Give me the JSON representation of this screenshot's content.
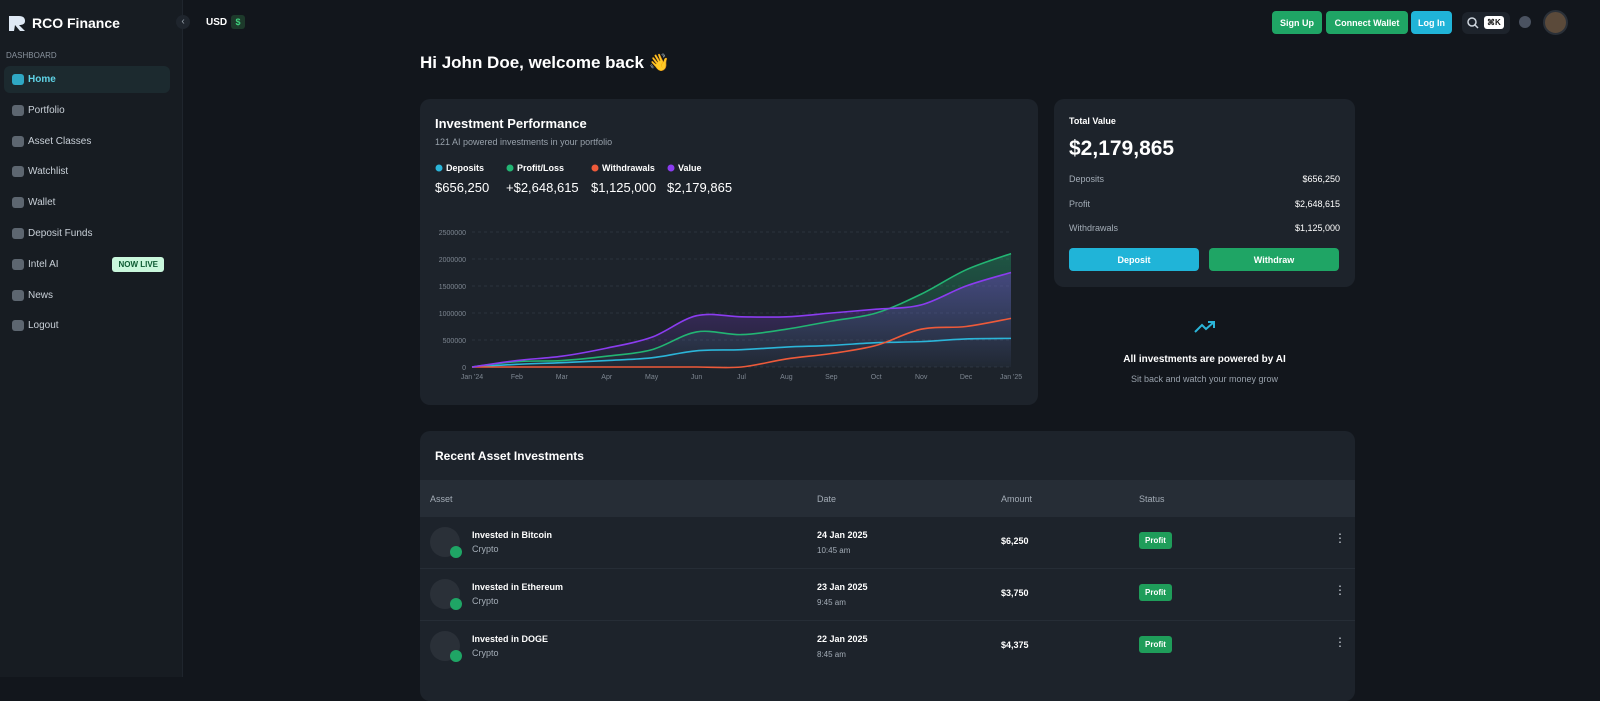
{
  "sidebar": {
    "brand": "RCO Finance",
    "section": "DASHBOARD",
    "items": [
      "Home",
      "Portfolio",
      "Asset Classes",
      "Watchlist",
      "Wallet",
      "Deposit Funds",
      "Intel AI",
      "News",
      "Logout"
    ],
    "badge": "NOW LIVE"
  },
  "topbar": {
    "currency": "USD",
    "currency_symbol": "$",
    "buttons": [
      "Sign Up",
      "Connect Wallet",
      "Log In"
    ],
    "shortcut": "⌘K"
  },
  "greeting": "Hi John Doe, welcome back 👋",
  "chart_data": {
    "type": "line",
    "title": "Investment Performance",
    "subtitle": "121 AI powered investments in your portfolio",
    "categories": [
      "Jan '24",
      "Feb",
      "Mar",
      "Apr",
      "May",
      "Jun",
      "Jul",
      "Aug",
      "Sep",
      "Oct",
      "Nov",
      "Dec",
      "Jan '25"
    ],
    "series": [
      {
        "name": "Deposits",
        "total": "$656,250",
        "color": "#2bb5d9",
        "area": false,
        "values": [
          0,
          50000,
          80000,
          120000,
          170000,
          300000,
          320000,
          370000,
          400000,
          450000,
          470000,
          520000,
          530000
        ]
      },
      {
        "name": "Profit/Loss",
        "total": "+$2,648,615",
        "color": "#22b573",
        "area": true,
        "values": [
          0,
          100000,
          120000,
          200000,
          320000,
          650000,
          600000,
          700000,
          850000,
          1000000,
          1350000,
          1800000,
          2100000
        ]
      },
      {
        "name": "Withdrawals",
        "total": "$1,125,000",
        "color": "#ee5a3a",
        "area": false,
        "values": [
          0,
          0,
          0,
          0,
          0,
          0,
          0,
          150000,
          250000,
          400000,
          700000,
          750000,
          900000
        ]
      },
      {
        "name": "Value",
        "total": "$2,179,865",
        "color": "#8b3cf0",
        "area": true,
        "values": [
          0,
          120000,
          200000,
          350000,
          550000,
          950000,
          930000,
          930000,
          1000000,
          1070000,
          1150000,
          1500000,
          1750000
        ]
      }
    ],
    "ylim": [
      0,
      2500000
    ],
    "yticks": [
      0,
      500000,
      1000000,
      1500000,
      2000000,
      2500000
    ],
    "grid": true
  },
  "summary": {
    "title": "Total Value",
    "total": "$2,179,865",
    "rows": [
      [
        "Deposits",
        "$656,250"
      ],
      [
        "Profit",
        "$2,648,615"
      ],
      [
        "Withdrawals",
        "$1,125,000"
      ]
    ],
    "buttons": [
      "Deposit",
      "Withdraw"
    ]
  },
  "promo": {
    "title": "All investments are powered by AI",
    "text": "Sit back and watch your money grow"
  },
  "recent": {
    "title": "Recent Asset Investments",
    "columns": [
      "Asset",
      "Date",
      "Amount",
      "Status"
    ],
    "rows": [
      {
        "title": "Invested in Bitcoin",
        "type": "Crypto",
        "date": "24 Jan 2025",
        "time": "10:45 am",
        "amount": "$6,250",
        "status": "Profit"
      },
      {
        "title": "Invested in Ethereum",
        "type": "Crypto",
        "date": "23 Jan 2025",
        "time": "9:45 am",
        "amount": "$3,750",
        "status": "Profit"
      },
      {
        "title": "Invested in DOGE",
        "type": "Crypto",
        "date": "22 Jan 2025",
        "time": "8:45 am",
        "amount": "$4,375",
        "status": "Profit"
      }
    ]
  }
}
